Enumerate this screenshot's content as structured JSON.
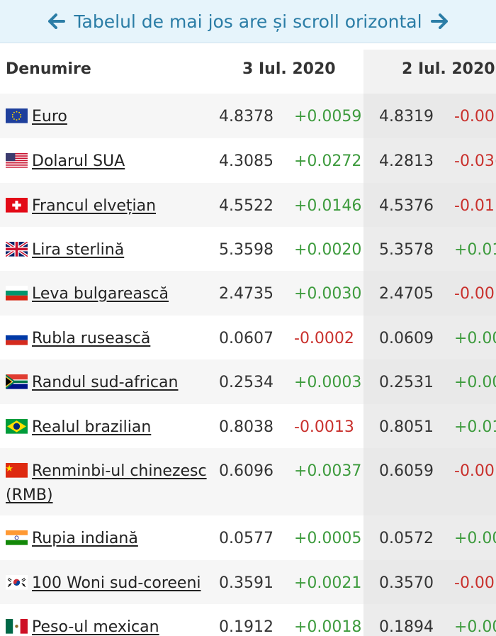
{
  "banner": {
    "text": "Tabelul de mai jos are și scroll orizontal",
    "left_icon": "arrow-left-icon",
    "right_icon": "arrow-right-icon"
  },
  "table": {
    "headers": [
      "Denumire",
      "3 Iul. 2020",
      "2 Iul. 2020"
    ],
    "rows": [
      {
        "name": "Euro",
        "flag": "eu",
        "v1": "4.8378",
        "c1": "+0.0059",
        "v2": "4.8319",
        "c2": "-0.00"
      },
      {
        "name": "Dolarul SUA",
        "flag": "us",
        "v1": "4.3085",
        "c1": "+0.0272",
        "v2": "4.2813",
        "c2": "-0.03("
      },
      {
        "name": "Francul elvețian",
        "flag": "ch",
        "v1": "4.5522",
        "c1": "+0.0146",
        "v2": "4.5376",
        "c2": "-0.01"
      },
      {
        "name": "Lira sterlină",
        "flag": "gb",
        "v1": "5.3598",
        "c1": "+0.0020",
        "v2": "5.3578",
        "c2": "+0.01"
      },
      {
        "name": "Leva bulgarească",
        "flag": "bg",
        "v1": "2.4735",
        "c1": "+0.0030",
        "v2": "2.4705",
        "c2": "-0.00"
      },
      {
        "name": "Rubla rusească",
        "flag": "ru",
        "v1": "0.0607",
        "c1": "-0.0002",
        "v2": "0.0609",
        "c2": "+0.00"
      },
      {
        "name": "Randul sud-african",
        "flag": "za",
        "v1": "0.2534",
        "c1": "+0.0003",
        "v2": "0.2531",
        "c2": "+0.00"
      },
      {
        "name": "Realul brazilian",
        "flag": "br",
        "v1": "0.8038",
        "c1": "-0.0013",
        "v2": "0.8051",
        "c2": "+0.01"
      },
      {
        "name": "Renminbi-ul chinezesc (RMB)",
        "flag": "cn",
        "v1": "0.6096",
        "c1": "+0.0037",
        "v2": "0.6059",
        "c2": "-0.00"
      },
      {
        "name": "Rupia indiană",
        "flag": "in",
        "v1": "0.0577",
        "c1": "+0.0005",
        "v2": "0.0572",
        "c2": "+0.00"
      },
      {
        "name": "100 Woni sud-coreeni",
        "flag": "kr",
        "v1": "0.3591",
        "c1": "+0.0021",
        "v2": "0.3570",
        "c2": "-0.00"
      },
      {
        "name": "Peso-ul mexican",
        "flag": "mx",
        "v1": "0.1912",
        "c1": "+0.0018",
        "v2": "0.1894",
        "c2": "+0.00"
      }
    ]
  },
  "colors": {
    "positive": "#3d9b3d",
    "negative": "#c9302c",
    "banner_text": "#2b7da6"
  }
}
